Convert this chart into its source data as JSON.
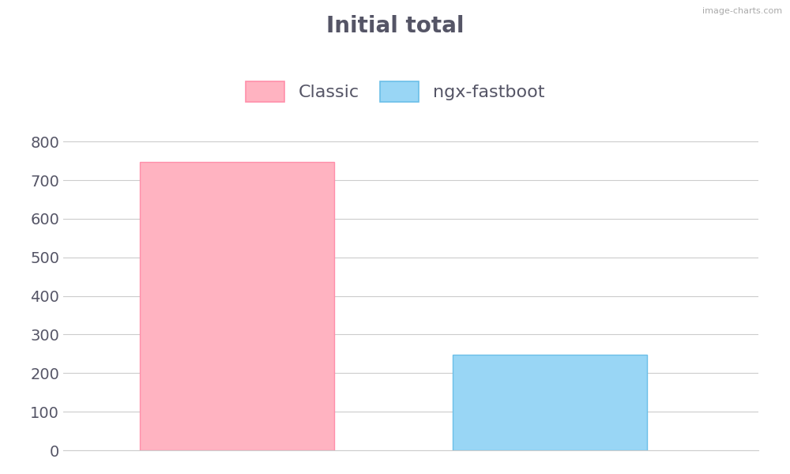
{
  "title": "Initial total",
  "title_fontsize": 20,
  "title_fontweight": "bold",
  "categories": [
    "Classic",
    "ngx-fastboot"
  ],
  "values": [
    748,
    248
  ],
  "bar_colors": [
    "#ffb3c1",
    "#99d6f5"
  ],
  "bar_edge_colors": [
    "#ff8faa",
    "#6bbfe8"
  ],
  "legend_labels": [
    "Classic",
    "ngx-fastboot"
  ],
  "legend_colors": [
    "#ffb3c1",
    "#99d6f5"
  ],
  "legend_edge_colors": [
    "#ff8faa",
    "#6bbfe8"
  ],
  "ylim": [
    0,
    860
  ],
  "yticks": [
    0,
    100,
    200,
    300,
    400,
    500,
    600,
    700,
    800
  ],
  "grid_color": "#cccccc",
  "background_color": "#ffffff",
  "bar_width": 0.28,
  "bar_positions": [
    0.25,
    0.7
  ],
  "watermark": "image-charts.com",
  "text_color": "#555566",
  "tick_fontsize": 14,
  "legend_fontsize": 16
}
